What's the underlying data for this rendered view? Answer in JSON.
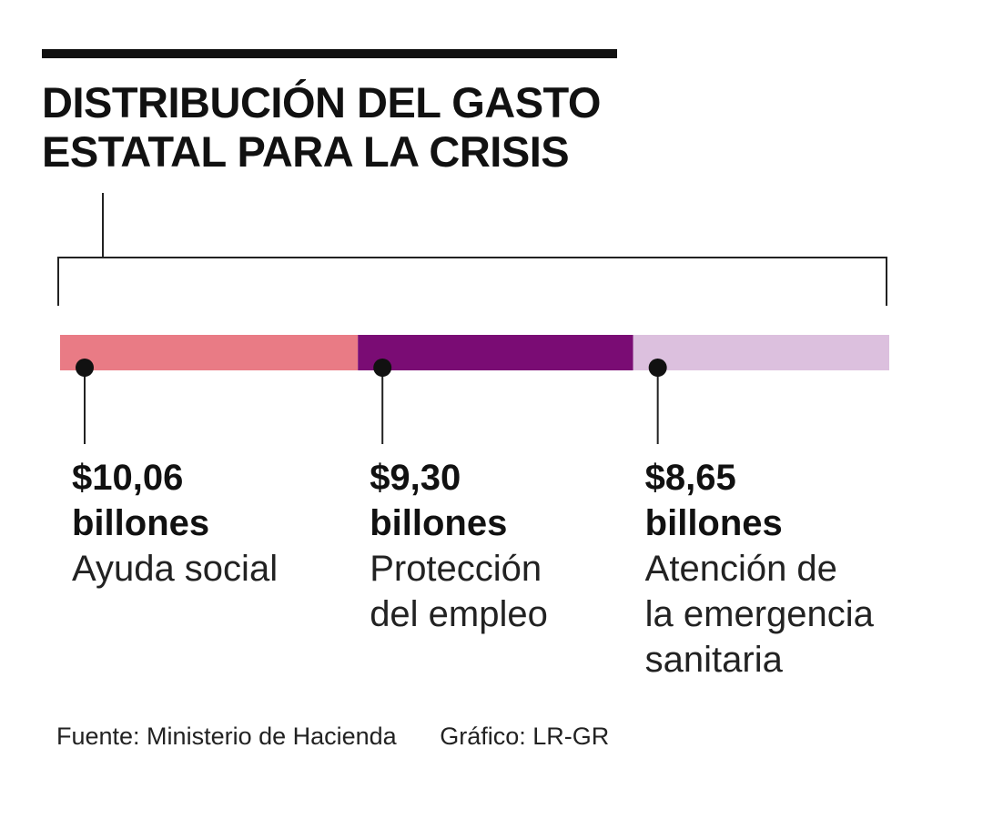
{
  "header": {
    "title_lines": [
      "DISTRIBUCIÓN DEL GASTO",
      "ESTATAL PARA LA CRISIS"
    ]
  },
  "chart_data": {
    "type": "bar",
    "orientation": "horizontal-stacked",
    "title": "DISTRIBUCIÓN DEL GASTO ESTATAL PARA LA CRISIS",
    "unit": "billones",
    "segments": [
      {
        "value": 10.06,
        "amount_label": "$10,06",
        "unit_label": "billones",
        "category_lines": [
          "Ayuda social"
        ],
        "color": "#E97B85"
      },
      {
        "value": 9.3,
        "amount_label": "$9,30",
        "unit_label": "billones",
        "category_lines": [
          "Protección",
          "del empleo"
        ],
        "color": "#7A0C74"
      },
      {
        "value": 8.65,
        "amount_label": "$8,65",
        "unit_label": "billones",
        "category_lines": [
          "Atención de",
          "la emergencia",
          "sanitaria"
        ],
        "color": "#DCC0DE"
      }
    ]
  },
  "footer": {
    "source": "Fuente: Ministerio de Hacienda",
    "credit": "Gráfico: LR-GR"
  }
}
